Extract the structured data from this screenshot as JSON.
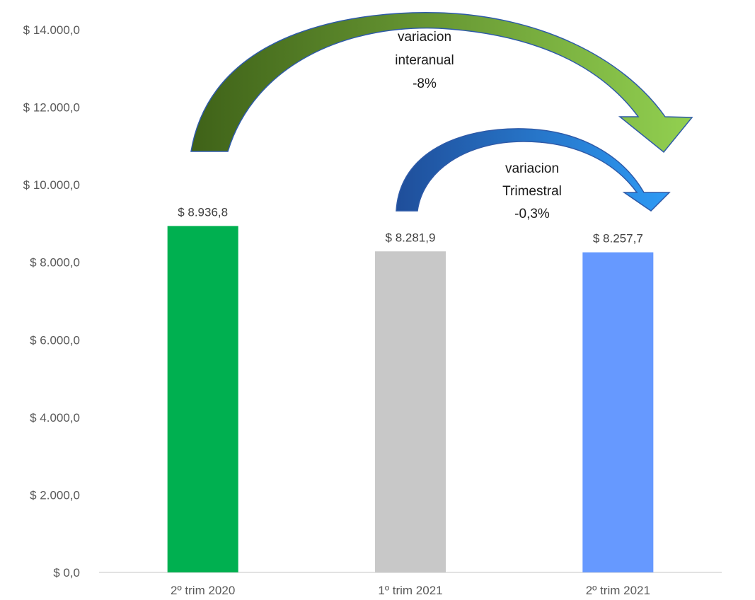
{
  "chart_data": {
    "type": "bar",
    "title": "",
    "xlabel": "",
    "ylabel": "",
    "categories": [
      "2º trim 2020",
      "1º trim 2021",
      "2º trim 2021"
    ],
    "values": [
      8936.8,
      8281.9,
      8257.7
    ],
    "data_labels": [
      "$ 8.936,8",
      "$ 8.281,9",
      "$ 8.257,7"
    ],
    "bar_colors": [
      "#00b050",
      "#c8c8c8",
      "#6699ff"
    ],
    "ylim": [
      0,
      14000
    ],
    "yticks": [
      0,
      2000,
      4000,
      6000,
      8000,
      10000,
      12000,
      14000
    ],
    "ytick_labels": [
      "$ 0,0",
      "$ 2.000,0",
      "$ 4.000,0",
      "$ 6.000,0",
      "$ 8.000,0",
      "$ 10.000,0",
      "$ 12.000,0",
      "$ 14.000,0"
    ],
    "grid": false,
    "legend": "none",
    "annotations": [
      {
        "id": "interanual",
        "from_category": "2º trim 2020",
        "to_category": "2º trim 2021",
        "lines": [
          "variacion",
          "interanual",
          "-8%"
        ],
        "gradient": [
          "#3f6218",
          "#92d050"
        ]
      },
      {
        "id": "trimestral",
        "from_category": "1º trim 2021",
        "to_category": "2º trim 2021",
        "lines": [
          "variacion",
          "Trimestral",
          "-0,3%"
        ],
        "gradient": [
          "#1f4e9a",
          "#2e9bf5"
        ]
      }
    ]
  }
}
